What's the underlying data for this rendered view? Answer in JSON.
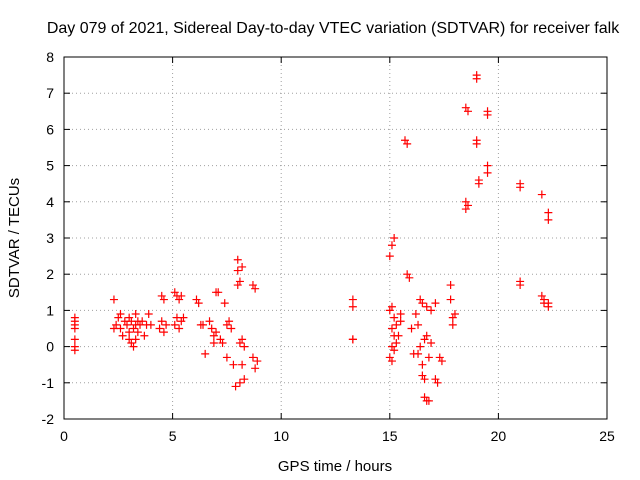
{
  "chart_data": {
    "type": "scatter",
    "title": "Day 079 of 2021, Sidereal Day-to-day VTEC variation (SDTVAR) for receiver falk",
    "xlabel": "GPS time / hours",
    "ylabel": "SDTVAR / TECUs",
    "xlim": [
      0,
      25
    ],
    "ylim": [
      -2,
      8
    ],
    "xticks": [
      "0",
      "5",
      "10",
      "15",
      "20",
      "25"
    ],
    "yticks": [
      "-2",
      "-1",
      "0",
      "1",
      "2",
      "3",
      "4",
      "5",
      "6",
      "7",
      "8"
    ],
    "grid": true,
    "marker": "+",
    "color": "#ff0000",
    "series": [
      {
        "name": "SDTVAR",
        "x": [
          0.5,
          0.5,
          0.5,
          0.5,
          0.5,
          0.5,
          0.5,
          2.3,
          2.3,
          2.4,
          2.5,
          2.6,
          2.6,
          2.7,
          2.8,
          2.9,
          3.0,
          3.0,
          3.0,
          3.1,
          3.1,
          3.2,
          3.2,
          3.3,
          3.3,
          3.3,
          3.4,
          3.4,
          3.5,
          3.6,
          3.7,
          3.8,
          3.9,
          4.0,
          4.4,
          4.5,
          4.5,
          4.6,
          4.6,
          4.7,
          5.1,
          5.1,
          5.2,
          5.2,
          5.3,
          5.3,
          5.4,
          5.4,
          5.5,
          6.1,
          6.2,
          6.3,
          6.4,
          6.5,
          6.7,
          6.8,
          6.9,
          6.9,
          7.0,
          7.0,
          7.1,
          7.2,
          7.3,
          7.4,
          7.5,
          7.5,
          7.6,
          7.7,
          7.8,
          7.9,
          8.0,
          8.0,
          8.0,
          8.1,
          8.1,
          8.1,
          8.2,
          8.2,
          8.2,
          8.3,
          8.3,
          8.7,
          8.7,
          8.8,
          8.8,
          8.9,
          13.3,
          13.3,
          13.3,
          13.3,
          15.0,
          15.0,
          15.0,
          15.1,
          15.1,
          15.1,
          15.1,
          15.1,
          15.2,
          15.2,
          15.2,
          15.2,
          15.3,
          15.3,
          15.4,
          15.5,
          15.5,
          15.7,
          15.8,
          15.8,
          15.9,
          16.0,
          16.1,
          16.2,
          16.3,
          16.3,
          16.4,
          16.4,
          16.5,
          16.5,
          16.5,
          16.6,
          16.6,
          16.6,
          16.7,
          16.7,
          16.7,
          16.8,
          16.8,
          16.9,
          16.9,
          17.1,
          17.1,
          17.2,
          17.3,
          17.4,
          17.8,
          17.8,
          17.9,
          17.9,
          18.0,
          18.5,
          18.5,
          18.5,
          18.6,
          18.6,
          19.0,
          19.0,
          19.0,
          19.0,
          19.1,
          19.1,
          19.5,
          19.5,
          19.5,
          19.5,
          21.0,
          21.0,
          21.0,
          21.0,
          22.0,
          22.0,
          22.1,
          22.1,
          22.3,
          22.3,
          22.3,
          22.3
        ],
        "y": [
          0.8,
          0.6,
          0.2,
          0.0,
          -0.1,
          0.5,
          0.7,
          1.3,
          0.5,
          0.6,
          0.8,
          0.5,
          0.9,
          0.3,
          0.7,
          0.6,
          0.2,
          0.4,
          0.8,
          0.1,
          0.7,
          0.0,
          0.5,
          0.2,
          0.6,
          0.9,
          0.4,
          0.7,
          0.6,
          0.7,
          0.3,
          0.6,
          0.9,
          0.6,
          0.5,
          1.4,
          0.7,
          1.3,
          0.4,
          0.6,
          1.5,
          0.6,
          1.4,
          0.8,
          1.3,
          0.5,
          0.7,
          1.4,
          0.8,
          1.3,
          1.2,
          0.6,
          0.6,
          -0.2,
          0.7,
          0.5,
          0.1,
          0.3,
          1.5,
          0.4,
          1.5,
          0.2,
          0.1,
          1.2,
          0.6,
          -0.3,
          0.7,
          0.5,
          -0.5,
          -1.1,
          1.7,
          2.1,
          2.4,
          -1.0,
          1.8,
          0.1,
          2.2,
          -0.5,
          0.2,
          -0.9,
          0.0,
          1.7,
          -0.3,
          -0.6,
          1.6,
          -0.4,
          0.2,
          1.3,
          1.1,
          0.2,
          2.5,
          1.0,
          -0.3,
          2.8,
          0.0,
          1.1,
          0.5,
          -0.4,
          3.0,
          0.8,
          0.3,
          -0.1,
          0.6,
          0.1,
          0.3,
          0.7,
          0.9,
          5.7,
          5.6,
          2.0,
          1.9,
          0.5,
          -0.2,
          0.9,
          0.6,
          -0.2,
          1.3,
          0.0,
          -0.8,
          1.2,
          -0.5,
          0.2,
          -1.4,
          -0.9,
          1.1,
          -1.5,
          0.3,
          -1.5,
          -0.3,
          1.0,
          0.1,
          -0.9,
          1.2,
          -1.0,
          -0.3,
          -0.4,
          1.3,
          1.7,
          0.8,
          0.6,
          0.9,
          6.6,
          4.0,
          3.8,
          6.5,
          3.9,
          7.5,
          7.4,
          5.7,
          5.6,
          4.5,
          4.6,
          6.5,
          6.4,
          5.0,
          4.8,
          4.5,
          4.4,
          1.8,
          1.7,
          4.2,
          1.4,
          1.2,
          1.3,
          3.7,
          3.5,
          1.2,
          1.1
        ]
      }
    ]
  }
}
